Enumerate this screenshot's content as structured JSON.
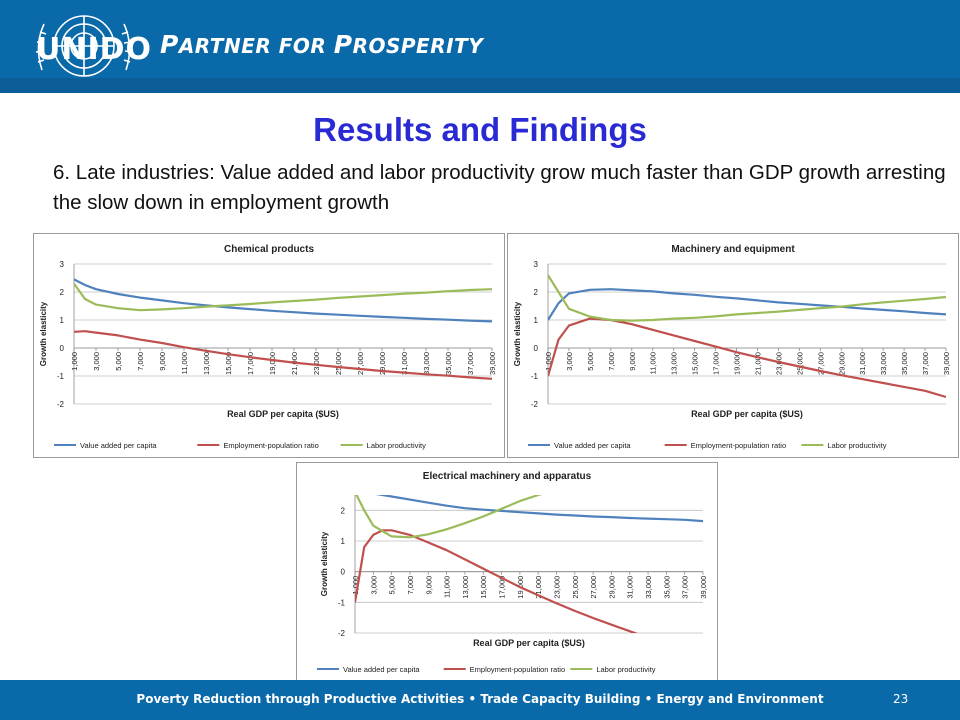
{
  "header": {
    "logo_text": "UNIDO",
    "tagline_first_letter_1": "P",
    "tagline_rest_1": "ARTNER FOR ",
    "tagline_first_letter_2": "P",
    "tagline_rest_2": "ROSPERITY"
  },
  "slide": {
    "title": "Results and Findings",
    "subtitle": "6. Late industries: Value added and labor productivity grow much faster than GDP growth arresting the slow down in employment growth"
  },
  "footer": {
    "text": "Poverty Reduction through Productive Activities  •  Trade Capacity Building  •  Energy and Environment",
    "page_number": "23"
  },
  "colors": {
    "header_blue": "#0a69a8",
    "title_blue": "#2a2ad4",
    "value_added": "#4f81bd",
    "employment": "#c0504d",
    "labor": "#9bbb59"
  },
  "chart_data": [
    {
      "type": "line",
      "title": "Chemical products",
      "xlabel": "Real GDP per capita ($US)",
      "ylabel": "Growth elasticity",
      "ylim": [
        -2,
        3
      ],
      "yticks": [
        -2,
        -1,
        0,
        1,
        2,
        3
      ],
      "categories": [
        "1,000",
        "3,000",
        "5,000",
        "7,000",
        "9,000",
        "11,000",
        "13,000",
        "15,000",
        "17,000",
        "19,000",
        "21,000",
        "23,000",
        "25,000",
        "27,000",
        "29,000",
        "31,000",
        "33,000",
        "35,000",
        "37,000",
        "39,000"
      ],
      "legend_position": "bottom",
      "series": [
        {
          "name": "Value added per capita",
          "color": "#4f81bd",
          "points": [
            [
              1000,
              2.45
            ],
            [
              2000,
              2.25
            ],
            [
              3000,
              2.1
            ],
            [
              5000,
              1.93
            ],
            [
              7000,
              1.8
            ],
            [
              9000,
              1.7
            ],
            [
              11000,
              1.6
            ],
            [
              13000,
              1.52
            ],
            [
              15000,
              1.45
            ],
            [
              17000,
              1.39
            ],
            [
              19000,
              1.33
            ],
            [
              21000,
              1.28
            ],
            [
              23000,
              1.23
            ],
            [
              25000,
              1.19
            ],
            [
              27000,
              1.15
            ],
            [
              29000,
              1.11
            ],
            [
              31000,
              1.08
            ],
            [
              33000,
              1.04
            ],
            [
              35000,
              1.01
            ],
            [
              37000,
              0.98
            ],
            [
              39000,
              0.95
            ]
          ]
        },
        {
          "name": "Employment-population ratio",
          "color": "#c0504d",
          "points": [
            [
              1000,
              0.58
            ],
            [
              2000,
              0.6
            ],
            [
              3000,
              0.55
            ],
            [
              5000,
              0.45
            ],
            [
              7000,
              0.3
            ],
            [
              9000,
              0.18
            ],
            [
              11000,
              0.03
            ],
            [
              13000,
              -0.1
            ],
            [
              15000,
              -0.22
            ],
            [
              17000,
              -0.33
            ],
            [
              19000,
              -0.43
            ],
            [
              21000,
              -0.52
            ],
            [
              23000,
              -0.6
            ],
            [
              25000,
              -0.68
            ],
            [
              27000,
              -0.75
            ],
            [
              29000,
              -0.82
            ],
            [
              31000,
              -0.88
            ],
            [
              33000,
              -0.94
            ],
            [
              35000,
              -0.99
            ],
            [
              37000,
              -1.05
            ],
            [
              39000,
              -1.1
            ]
          ]
        },
        {
          "name": "Labor productivity",
          "color": "#9bbb59",
          "points": [
            [
              1000,
              2.3
            ],
            [
              2000,
              1.75
            ],
            [
              3000,
              1.55
            ],
            [
              5000,
              1.42
            ],
            [
              7000,
              1.35
            ],
            [
              9000,
              1.38
            ],
            [
              11000,
              1.42
            ],
            [
              13000,
              1.48
            ],
            [
              15000,
              1.52
            ],
            [
              17000,
              1.57
            ],
            [
              19000,
              1.63
            ],
            [
              21000,
              1.68
            ],
            [
              23000,
              1.73
            ],
            [
              25000,
              1.79
            ],
            [
              27000,
              1.84
            ],
            [
              29000,
              1.89
            ],
            [
              31000,
              1.94
            ],
            [
              33000,
              1.98
            ],
            [
              35000,
              2.03
            ],
            [
              37000,
              2.07
            ],
            [
              39000,
              2.1
            ]
          ]
        }
      ]
    },
    {
      "type": "line",
      "title": "Machinery and equipment",
      "xlabel": "Real GDP per capita ($US)",
      "ylabel": "Growth elasticity",
      "ylim": [
        -2,
        3
      ],
      "yticks": [
        -2,
        -1,
        0,
        1,
        2,
        3
      ],
      "categories": [
        "1,000",
        "3,000",
        "5,000",
        "7,000",
        "9,000",
        "11,000",
        "13,000",
        "15,000",
        "17,000",
        "19,000",
        "21,000",
        "23,000",
        "25,000",
        "27,000",
        "29,000",
        "31,000",
        "33,000",
        "35,000",
        "37,000",
        "39,000"
      ],
      "legend_position": "bottom",
      "series": [
        {
          "name": "Value added per capita",
          "color": "#4f81bd",
          "points": [
            [
              1000,
              1.0
            ],
            [
              2000,
              1.6
            ],
            [
              3000,
              1.95
            ],
            [
              5000,
              2.08
            ],
            [
              7000,
              2.1
            ],
            [
              9000,
              2.06
            ],
            [
              11000,
              2.02
            ],
            [
              13000,
              1.95
            ],
            [
              15000,
              1.9
            ],
            [
              17000,
              1.83
            ],
            [
              19000,
              1.77
            ],
            [
              21000,
              1.7
            ],
            [
              23000,
              1.63
            ],
            [
              25000,
              1.58
            ],
            [
              27000,
              1.52
            ],
            [
              29000,
              1.47
            ],
            [
              31000,
              1.41
            ],
            [
              33000,
              1.36
            ],
            [
              35000,
              1.31
            ],
            [
              37000,
              1.25
            ],
            [
              39000,
              1.2
            ]
          ]
        },
        {
          "name": "Employment-population ratio",
          "color": "#c0504d",
          "points": [
            [
              1000,
              -1.0
            ],
            [
              2000,
              0.3
            ],
            [
              3000,
              0.8
            ],
            [
              5000,
              1.05
            ],
            [
              7000,
              1.0
            ],
            [
              9000,
              0.85
            ],
            [
              11000,
              0.65
            ],
            [
              13000,
              0.45
            ],
            [
              15000,
              0.25
            ],
            [
              17000,
              0.05
            ],
            [
              19000,
              -0.15
            ],
            [
              21000,
              -0.33
            ],
            [
              23000,
              -0.5
            ],
            [
              25000,
              -0.66
            ],
            [
              27000,
              -0.82
            ],
            [
              29000,
              -0.97
            ],
            [
              31000,
              -1.11
            ],
            [
              33000,
              -1.25
            ],
            [
              35000,
              -1.39
            ],
            [
              37000,
              -1.53
            ],
            [
              39000,
              -1.75
            ]
          ]
        },
        {
          "name": "Labor productivity",
          "color": "#9bbb59",
          "points": [
            [
              1000,
              2.6
            ],
            [
              2000,
              2.0
            ],
            [
              3000,
              1.4
            ],
            [
              5000,
              1.12
            ],
            [
              7000,
              1.0
            ],
            [
              9000,
              0.98
            ],
            [
              11000,
              1.0
            ],
            [
              13000,
              1.05
            ],
            [
              15000,
              1.08
            ],
            [
              17000,
              1.13
            ],
            [
              19000,
              1.2
            ],
            [
              21000,
              1.25
            ],
            [
              23000,
              1.3
            ],
            [
              25000,
              1.36
            ],
            [
              27000,
              1.42
            ],
            [
              29000,
              1.48
            ],
            [
              31000,
              1.56
            ],
            [
              33000,
              1.63
            ],
            [
              35000,
              1.69
            ],
            [
              37000,
              1.75
            ],
            [
              39000,
              1.82
            ]
          ]
        }
      ]
    },
    {
      "type": "line",
      "title": "Electrical machinery and apparatus",
      "xlabel": "Real GDP per capita ($US)",
      "ylabel": "Growth elasticity",
      "ylim": [
        -2,
        2.5
      ],
      "yticks": [
        -2,
        -1,
        0,
        1,
        2
      ],
      "categories": [
        "1,000",
        "3,000",
        "5,000",
        "7,000",
        "9,000",
        "11,000",
        "13,000",
        "15,000",
        "17,000",
        "19,000",
        "21,000",
        "23,000",
        "25,000",
        "27,000",
        "29,000",
        "31,000",
        "33,000",
        "35,000",
        "37,000",
        "39,000"
      ],
      "legend_position": "bottom",
      "series": [
        {
          "name": "Value added per capita",
          "color": "#4f81bd",
          "points": [
            [
              3000,
              2.55
            ],
            [
              5000,
              2.45
            ],
            [
              7000,
              2.35
            ],
            [
              9000,
              2.25
            ],
            [
              11000,
              2.15
            ],
            [
              13000,
              2.07
            ],
            [
              15000,
              2.02
            ],
            [
              17000,
              1.98
            ],
            [
              19000,
              1.94
            ],
            [
              21000,
              1.9
            ],
            [
              23000,
              1.86
            ],
            [
              25000,
              1.83
            ],
            [
              27000,
              1.8
            ],
            [
              29000,
              1.78
            ],
            [
              31000,
              1.75
            ],
            [
              33000,
              1.73
            ],
            [
              35000,
              1.71
            ],
            [
              37000,
              1.69
            ],
            [
              39000,
              1.65
            ]
          ]
        },
        {
          "name": "Employment-population ratio",
          "color": "#c0504d",
          "points": [
            [
              1000,
              -1.0
            ],
            [
              2000,
              0.8
            ],
            [
              3000,
              1.2
            ],
            [
              4000,
              1.35
            ],
            [
              5000,
              1.35
            ],
            [
              7000,
              1.2
            ],
            [
              9000,
              0.95
            ],
            [
              11000,
              0.7
            ],
            [
              13000,
              0.4
            ],
            [
              15000,
              0.1
            ],
            [
              17000,
              -0.2
            ],
            [
              19000,
              -0.5
            ],
            [
              21000,
              -0.77
            ],
            [
              23000,
              -1.03
            ],
            [
              25000,
              -1.28
            ],
            [
              27000,
              -1.51
            ],
            [
              29000,
              -1.73
            ],
            [
              31000,
              -1.94
            ],
            [
              32000,
              -2.05
            ]
          ]
        },
        {
          "name": "Labor productivity",
          "color": "#9bbb59",
          "points": [
            [
              1000,
              2.6
            ],
            [
              2000,
              2.0
            ],
            [
              3000,
              1.5
            ],
            [
              5000,
              1.15
            ],
            [
              7000,
              1.12
            ],
            [
              9000,
              1.22
            ],
            [
              11000,
              1.38
            ],
            [
              13000,
              1.58
            ],
            [
              15000,
              1.8
            ],
            [
              17000,
              2.05
            ],
            [
              19000,
              2.3
            ],
            [
              21000,
              2.5
            ],
            [
              22000,
              2.58
            ]
          ]
        }
      ]
    }
  ]
}
